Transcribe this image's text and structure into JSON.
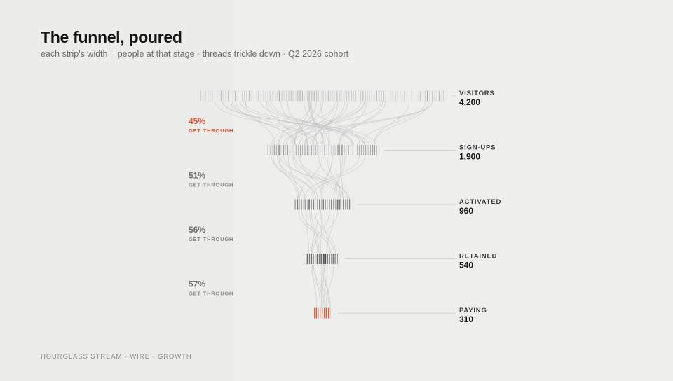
{
  "header": {
    "title": "The funnel, poured",
    "subtitle": "each strip's width = people at that stage · threads trickle down · Q2 2026 cohort"
  },
  "footer": {
    "text": "HOURGLASS STREAM · WIRE · GROWTH"
  },
  "colors": {
    "accent": "#e05a3a",
    "ink": "#141414",
    "muted": "#7a7a7a",
    "thread": "#bdbdbd",
    "leader": "#c8c8c8"
  },
  "chart_data": {
    "type": "funnel",
    "title": "The funnel, poured",
    "subtitle": "each strip's width = people at that stage · threads trickle down · Q2 2026 cohort",
    "stages": [
      {
        "name": "VISITORS",
        "value": 4200,
        "label": "4,200"
      },
      {
        "name": "SIGN-UPS",
        "value": 1900,
        "label": "1,900"
      },
      {
        "name": "ACTIVATED",
        "value": 960,
        "label": "960"
      },
      {
        "name": "RETAINED",
        "value": 540,
        "label": "540"
      },
      {
        "name": "PAYING",
        "value": 310,
        "label": "310"
      }
    ],
    "conversion_rates": [
      {
        "pct": "45%",
        "label": "GET THROUGH",
        "highlight": true
      },
      {
        "pct": "51%",
        "label": "GET THROUGH",
        "highlight": false
      },
      {
        "pct": "56%",
        "label": "GET THROUGH",
        "highlight": false
      },
      {
        "pct": "57%",
        "label": "GET THROUGH",
        "highlight": false
      }
    ],
    "highlight_stage": "PAYING"
  }
}
